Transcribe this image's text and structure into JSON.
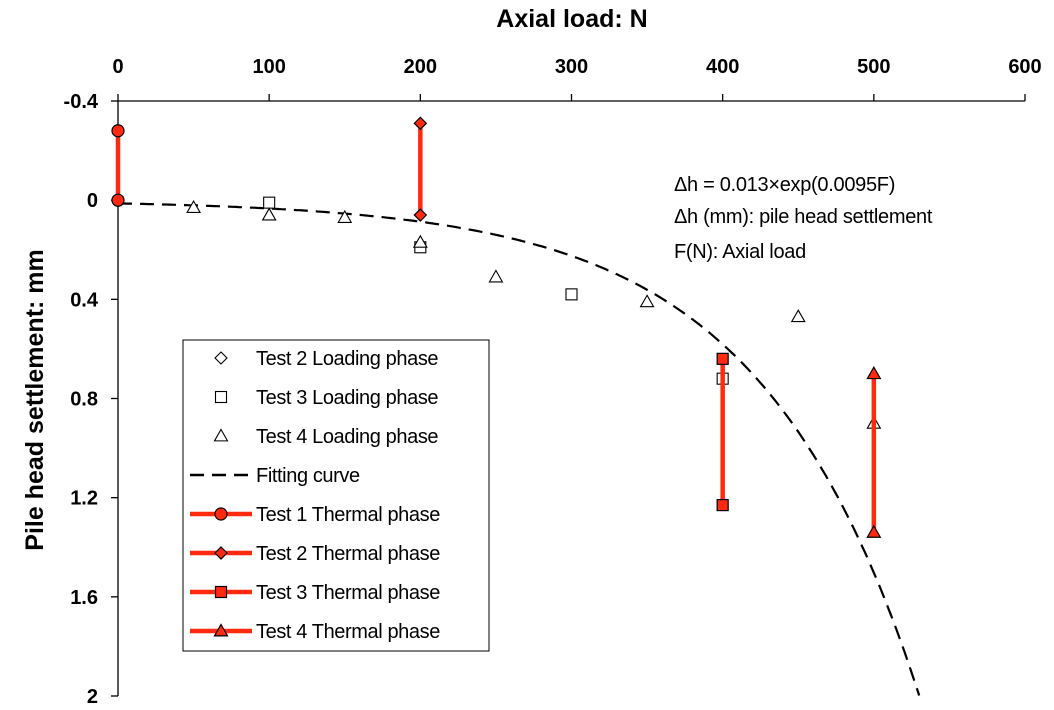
{
  "chart_data": {
    "type": "scatter",
    "title": "",
    "xlabel": "Axial load: N",
    "ylabel": "Pile head settlement: mm",
    "x_axis_position": "top",
    "y_axis_inverted": true,
    "xlim": [
      0,
      600
    ],
    "ylim": [
      -0.4,
      2
    ],
    "x_ticks": [
      "0",
      "100",
      "200",
      "300",
      "400",
      "500",
      "600"
    ],
    "y_ticks": [
      "-0.4",
      "0",
      "0.4",
      "0.8",
      "1.2",
      "1.6",
      "2"
    ],
    "grid": false,
    "legend_position": "bottom-left",
    "colors": {
      "thermal": "#ff2a0f",
      "marker_edge": "#000000",
      "curve": "#000000"
    },
    "annotations": [
      "Δh  = 0.013×exp(0.0095F)",
      "Δh (mm): pile head settlement",
      "F(N): Axial load"
    ],
    "fit_curve": {
      "name": "Fitting curve",
      "a": 0.013,
      "b": 0.0095,
      "x_range": [
        0,
        530
      ]
    },
    "series": [
      {
        "name": "Test 2 Loading phase",
        "marker": "diamond-open",
        "points": []
      },
      {
        "name": "Test 3 Loading phase",
        "marker": "square-open",
        "points": [
          [
            100,
            0.01
          ],
          [
            200,
            0.19
          ],
          [
            300,
            0.38
          ],
          [
            400,
            0.72
          ]
        ]
      },
      {
        "name": "Test 4 Loading phase",
        "marker": "triangle-open",
        "points": [
          [
            50,
            0.03
          ],
          [
            100,
            0.06
          ],
          [
            150,
            0.07
          ],
          [
            200,
            0.17
          ],
          [
            250,
            0.31
          ],
          [
            350,
            0.41
          ],
          [
            450,
            0.47
          ],
          [
            500,
            0.9
          ]
        ]
      },
      {
        "name": "Fitting curve",
        "marker": "dashed-line",
        "points": []
      },
      {
        "name": "Test 1 Thermal phase",
        "marker": "circle-filled",
        "points": [
          [
            0,
            -0.28
          ],
          [
            0,
            0.0
          ]
        ]
      },
      {
        "name": "Test 2 Thermal phase",
        "marker": "diamond-filled",
        "points": [
          [
            200,
            -0.31
          ],
          [
            200,
            0.06
          ]
        ]
      },
      {
        "name": "Test 3 Thermal phase",
        "marker": "square-filled",
        "points": [
          [
            400,
            0.64
          ],
          [
            400,
            1.23
          ]
        ]
      },
      {
        "name": "Test 4 Thermal phase",
        "marker": "triangle-filled",
        "points": [
          [
            500,
            0.7
          ],
          [
            500,
            1.34
          ]
        ]
      }
    ]
  }
}
